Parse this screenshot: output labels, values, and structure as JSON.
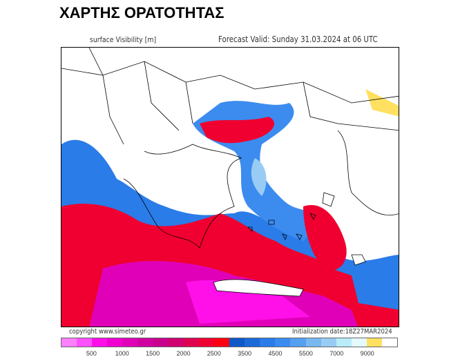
{
  "title": "ΧΑΡΤΗΣ ΟΡΑΤΟΤΗΤΑΣ",
  "field_label": "surface Visibility [m]",
  "forecast_valid": "Forecast Valid:  Sunday 31.03.2024 at 06 UTC",
  "copyright": "copyright www.simeteo.gr",
  "initialization": "Initialization date:18Z27MAR2024",
  "colorbar": {
    "colors": [
      "#ff80ff",
      "#ff50ff",
      "#ff10e8",
      "#f000d0",
      "#e000b8",
      "#d000a0",
      "#c8008c",
      "#d00070",
      "#e00050",
      "#f00030",
      "#ff0010",
      "#1058c8",
      "#1c6ad8",
      "#2a7ce8",
      "#3c8cf0",
      "#55a0f0",
      "#78b8f0",
      "#98ccf4",
      "#b8ecf8",
      "#e4faff",
      "#ffe060",
      "#ffffff"
    ],
    "labels": [
      "500",
      "1000",
      "1500",
      "2000",
      "2500",
      "3500",
      "4500",
      "5500",
      "7000",
      "9000"
    ]
  }
}
